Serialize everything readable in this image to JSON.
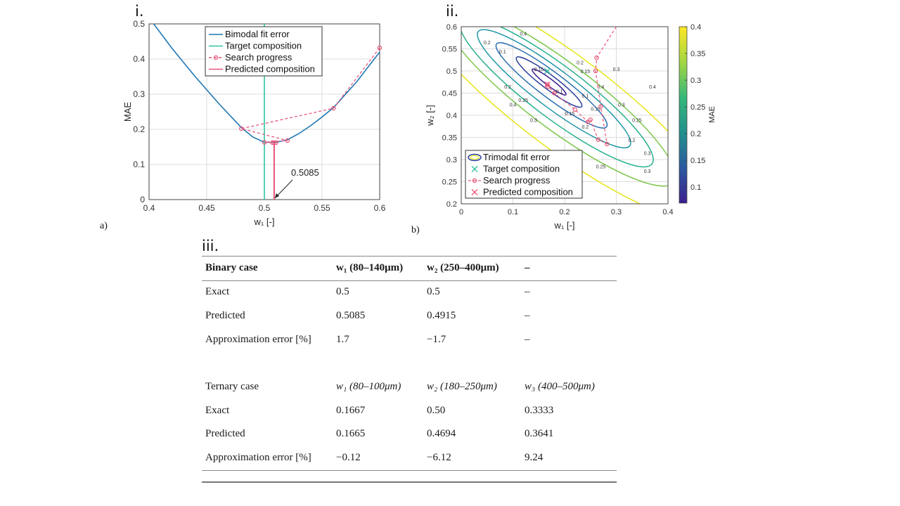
{
  "panel_labels": {
    "roman_i": "i.",
    "roman_ii": "ii.",
    "roman_iii": "iii.",
    "a": "a)",
    "b": "b)"
  },
  "colors": {
    "fit": "#1f77b4",
    "target": "#2ec4a0",
    "search": "#e8577a",
    "predicted": "#e8577a"
  },
  "chart_data": [
    {
      "type": "line",
      "xlabel": "w₁ [-]",
      "ylabel": "MAE",
      "xlim": [
        0.4,
        0.6
      ],
      "ylim": [
        0,
        0.5
      ],
      "xticks": [
        "0.4",
        "0.45",
        "0.5",
        "0.55",
        "0.6"
      ],
      "yticks": [
        "0",
        "0.1",
        "0.2",
        "0.3",
        "0.4",
        "0.5"
      ],
      "grid": true,
      "legend_position": "top",
      "legend": [
        "Bimodal fit error",
        "Target composition",
        "Search progress",
        "Predicted composition"
      ],
      "series": [
        {
          "name": "Bimodal fit error",
          "x": [
            0.404,
            0.42,
            0.44,
            0.46,
            0.48,
            0.49,
            0.5,
            0.51,
            0.52,
            0.53,
            0.54,
            0.55,
            0.56,
            0.58,
            0.6
          ],
          "y": [
            0.5,
            0.43,
            0.35,
            0.275,
            0.205,
            0.178,
            0.163,
            0.163,
            0.17,
            0.188,
            0.21,
            0.235,
            0.262,
            0.335,
            0.42
          ]
        },
        {
          "name": "Target composition",
          "x": [
            0.5,
            0.5
          ],
          "y": [
            0,
            0.5
          ]
        },
        {
          "name": "Search progress",
          "x": [
            0.6,
            0.56,
            0.48,
            0.52,
            0.5,
            0.507,
            0.5085,
            0.51
          ],
          "y": [
            0.432,
            0.26,
            0.202,
            0.168,
            0.163,
            0.162,
            0.162,
            0.162
          ]
        },
        {
          "name": "Predicted composition",
          "x": [
            0.5085,
            0.5085
          ],
          "y": [
            0,
            0.162
          ]
        }
      ],
      "annotations": [
        {
          "text": "0.5085",
          "x": 0.5085,
          "y": 0
        }
      ]
    },
    {
      "type": "contour",
      "xlabel": "w₁ [-]",
      "ylabel": "w₂ [-]",
      "xlim": [
        0,
        0.4
      ],
      "ylim": [
        0.2,
        0.6
      ],
      "xticks": [
        "0",
        "0.1",
        "0.2",
        "0.3",
        "0.4"
      ],
      "yticks": [
        "0.2",
        "0.25",
        "0.3",
        "0.35",
        "0.4",
        "0.45",
        "0.5",
        "0.55",
        "0.6"
      ],
      "grid": true,
      "legend_position": "bottom-left",
      "legend": [
        "Trimodal fit error",
        "Target composition",
        "Search progress",
        "Predicted composition"
      ],
      "contour_levels": [
        0.07,
        0.1,
        0.15,
        0.2,
        0.25,
        0.3,
        0.4
      ],
      "colorbar": {
        "label": "MAE",
        "range": [
          0.07,
          0.4
        ],
        "ticks": [
          "0.1",
          "0.15",
          "0.2",
          "0.25",
          "0.3",
          "0.35",
          "0.4"
        ]
      },
      "series": [
        {
          "name": "Search progress",
          "x": [
            0.3,
            0.262,
            0.26,
            0.27,
            0.282,
            0.265,
            0.25,
            0.245,
            0.22,
            0.18,
            0.168,
            0.1665
          ],
          "y": [
            0.6,
            0.53,
            0.5,
            0.42,
            0.335,
            0.345,
            0.39,
            0.385,
            0.413,
            0.45,
            0.465,
            0.4694
          ]
        },
        {
          "name": "Target composition",
          "x": [
            0.1667
          ],
          "y": [
            0.5
          ]
        },
        {
          "name": "Predicted composition",
          "x": [
            0.1665
          ],
          "y": [
            0.4694
          ]
        }
      ]
    }
  ],
  "table": {
    "binary": {
      "headers": [
        "Binary case",
        "w₁ (80–140μm)",
        "w₂ (250–400μm)",
        "–"
      ],
      "rows": [
        [
          "Exact",
          "0.5",
          "0.5",
          "–"
        ],
        [
          "Predicted",
          "0.5085",
          "0.4915",
          "–"
        ],
        [
          "Approximation error [%]",
          "1.7",
          "−1.7",
          "–"
        ]
      ]
    },
    "ternary": {
      "headers": [
        "Ternary case",
        "w₁ (80–100μm)",
        "w₂ (180–250μm)",
        "w₃ (400–500μm)"
      ],
      "rows": [
        [
          "Exact",
          "0.1667",
          "0.50",
          "0.3333"
        ],
        [
          "Predicted",
          "0.1665",
          "0.4694",
          "0.3641"
        ],
        [
          "Approximation error [%]",
          "−0.12",
          "−6.12",
          "9.24"
        ]
      ]
    }
  }
}
